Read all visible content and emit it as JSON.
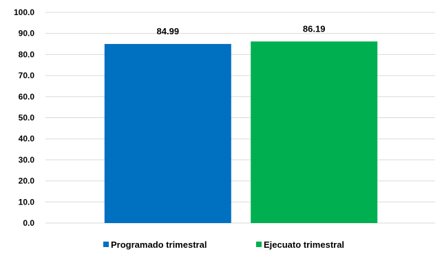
{
  "chart_data": {
    "type": "bar",
    "title": "",
    "xlabel": "",
    "ylabel": "",
    "ylim": [
      0,
      100
    ],
    "y_ticks": [
      "0.0",
      "10.0",
      "20.0",
      "30.0",
      "40.0",
      "50.0",
      "60.0",
      "70.0",
      "80.0",
      "90.0",
      "100.0"
    ],
    "grid": true,
    "legend_position": "bottom",
    "series": [
      {
        "name": "Programado trimestral",
        "value": 84.99,
        "label": "84.99",
        "color": "#0070C0"
      },
      {
        "name": "Ejecuato trimestral",
        "value": 86.19,
        "label": "86.19",
        "color": "#00B050"
      }
    ]
  }
}
